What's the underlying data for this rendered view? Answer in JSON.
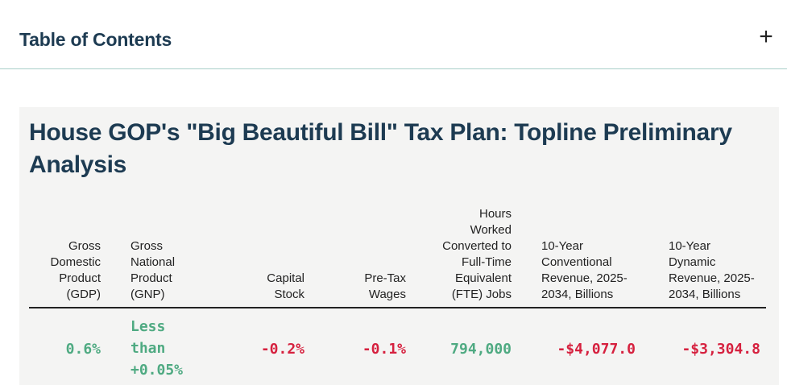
{
  "toc": {
    "title": "Table of Contents",
    "toggle": "+"
  },
  "table": {
    "title": "House GOP's \"Big Beautiful Bill\" Tax Plan: Topline Preliminary Analysis",
    "headers": [
      "Gross\nDomestic\nProduct\n(GDP)",
      "Gross\nNational\nProduct\n(GNP)",
      "Capital\nStock",
      "Pre-Tax\nWages",
      "Hours\nWorked\nConverted to\nFull-Time\nEquivalent\n(FTE) Jobs",
      "10-Year\nConventional\nRevenue, 2025-\n2034, Billions",
      "10-Year\nDynamic\nRevenue, 2025-\n2034, Billions"
    ],
    "row": [
      "0.6%",
      "Less\nthan\n+0.05%",
      "-0.2%",
      "-0.1%",
      "794,000",
      "-$4,077.0",
      "-$3,304.8"
    ]
  },
  "colors": {
    "heading": "#1d3b52",
    "positive": "#4faa82",
    "negative": "#d6213f",
    "divider": "#a9cfc8",
    "card_background": "#f4f4f3"
  }
}
